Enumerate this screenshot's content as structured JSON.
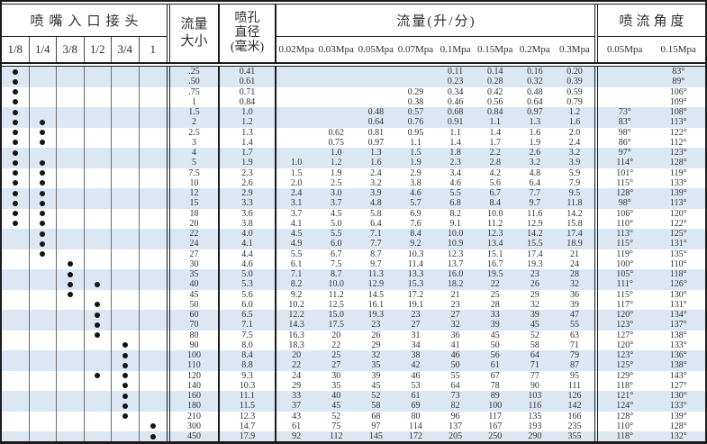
{
  "colors": {
    "stripe": "#dbe7f3",
    "border": "#1b1b1b",
    "text": "#2d2d2d"
  },
  "header": {
    "connector_group": "喷嘴入口接头",
    "connector_sizes": [
      "1/8",
      "1/4",
      "3/8",
      "1/2",
      "3/4",
      "1"
    ],
    "flow_size_line1": "流量",
    "flow_size_line2": "大小",
    "orifice_line1": "喷孔",
    "orifice_line2": "直径",
    "orifice_line3": "(毫米)",
    "flow_group": "流量(升/分)",
    "flow_pressures": [
      "0.02Mpa",
      "0.03Mpa",
      "0.05Mpa",
      "0.07Mpa",
      "0.1Mpa",
      "0.15Mpa",
      "0.2Mpa",
      "0.3Mpa"
    ],
    "angle_group": "喷流角度",
    "angle_pressures": [
      "0.05Mpa",
      "0.15Mpa"
    ]
  },
  "rows": [
    {
      "dots": [
        1,
        0,
        0,
        0,
        0,
        0
      ],
      "size": ".25",
      "dia": "0.41",
      "flows": [
        "",
        "",
        "",
        "",
        "0.11",
        "0.14",
        "0.16",
        "0.20"
      ],
      "angles": [
        "",
        "83°"
      ]
    },
    {
      "dots": [
        1,
        0,
        0,
        0,
        0,
        0
      ],
      "size": ".50",
      "dia": "0.61",
      "flows": [
        "",
        "",
        "",
        "",
        "0.23",
        "0.28",
        "0.32",
        "0.39"
      ],
      "angles": [
        "",
        "89°"
      ]
    },
    {
      "dots": [
        1,
        0,
        0,
        0,
        0,
        0
      ],
      "size": ".75",
      "dia": "0.71",
      "flows": [
        "",
        "",
        "",
        "0.29",
        "0.34",
        "0.42",
        "0.48",
        "0.59"
      ],
      "angles": [
        "",
        "106°"
      ]
    },
    {
      "dots": [
        1,
        0,
        0,
        0,
        0,
        0
      ],
      "size": "1",
      "dia": "0.84",
      "flows": [
        "",
        "",
        "",
        "0.38",
        "0.46",
        "0.56",
        "0.64",
        "0.79"
      ],
      "angles": [
        "",
        "109°"
      ]
    },
    {
      "dots": [
        1,
        0,
        0,
        0,
        0,
        0
      ],
      "size": "1.5",
      "dia": "1.0",
      "flows": [
        "",
        "",
        "0.48",
        "0.57",
        "0.68",
        "0.84",
        "0.97",
        "1.2"
      ],
      "angles": [
        "73°",
        "108°"
      ]
    },
    {
      "dots": [
        1,
        1,
        0,
        0,
        0,
        0
      ],
      "size": "2",
      "dia": "1.2",
      "flows": [
        "",
        "",
        "0.64",
        "0.76",
        "0.91",
        "1.1",
        "1.3",
        "1.6"
      ],
      "angles": [
        "83°",
        "113°"
      ]
    },
    {
      "dots": [
        1,
        1,
        0,
        0,
        0,
        0
      ],
      "size": "2.5",
      "dia": "1.3",
      "flows": [
        "",
        "0.62",
        "0.81",
        "0.95",
        "1.1",
        "1.4",
        "1.6",
        "2.0"
      ],
      "angles": [
        "98°",
        "122°"
      ]
    },
    {
      "dots": [
        1,
        1,
        0,
        0,
        0,
        0
      ],
      "size": "3",
      "dia": "1.4",
      "flows": [
        "",
        "0.75",
        "0.97",
        "1.1",
        "1.4",
        "1.7",
        "1.9",
        "2.4"
      ],
      "angles": [
        "86°",
        "112°"
      ]
    },
    {
      "dots": [
        1,
        0,
        0,
        0,
        0,
        0
      ],
      "size": "4",
      "dia": "1.7",
      "flows": [
        "",
        "1.0",
        "1.3",
        "1.5",
        "1.8",
        "2.2",
        "2.6",
        "3.2"
      ],
      "angles": [
        "97°",
        "123°"
      ]
    },
    {
      "dots": [
        1,
        1,
        0,
        0,
        0,
        0
      ],
      "size": "5",
      "dia": "1.9",
      "flows": [
        "1.0",
        "1.2",
        "1.6",
        "1.9",
        "2.3",
        "2.8",
        "3.2",
        "3.9"
      ],
      "angles": [
        "114°",
        "128°"
      ]
    },
    {
      "dots": [
        1,
        1,
        0,
        0,
        0,
        0
      ],
      "size": "7.5",
      "dia": "2.3",
      "flows": [
        "1.5",
        "1.9",
        "2.4",
        "2.9",
        "3.4",
        "4.2",
        "4.8",
        "5.9"
      ],
      "angles": [
        "101°",
        "119°"
      ]
    },
    {
      "dots": [
        1,
        1,
        0,
        0,
        0,
        0
      ],
      "size": "10",
      "dia": "2.6",
      "flows": [
        "2.0",
        "2.5",
        "3.2",
        "3.8",
        "4.6",
        "5.6",
        "6.4",
        "7.9"
      ],
      "angles": [
        "115°",
        "133°"
      ]
    },
    {
      "dots": [
        1,
        1,
        0,
        0,
        0,
        0
      ],
      "size": "12",
      "dia": "2.9",
      "flows": [
        "2.4",
        "3.0",
        "3.9",
        "4.6",
        "5.5",
        "6.7",
        "7.7",
        "9.5"
      ],
      "angles": [
        "128°",
        "139°"
      ]
    },
    {
      "dots": [
        1,
        1,
        0,
        0,
        0,
        0
      ],
      "size": "15",
      "dia": "3.3",
      "flows": [
        "3.1",
        "3.7",
        "4.8",
        "5.7",
        "6.8",
        "8.4",
        "9.7",
        "11.8"
      ],
      "angles": [
        "98°",
        "113°"
      ]
    },
    {
      "dots": [
        1,
        1,
        0,
        0,
        0,
        0
      ],
      "size": "18",
      "dia": "3.6",
      "flows": [
        "3.7",
        "4.5",
        "5.8",
        "6.9",
        "8.2",
        "10.0",
        "11.6",
        "14.2"
      ],
      "angles": [
        "106°",
        "120°"
      ]
    },
    {
      "dots": [
        1,
        1,
        0,
        0,
        0,
        0
      ],
      "size": "20",
      "dia": "3.8",
      "flows": [
        "4.1",
        "5.0",
        "6.4",
        "7.6",
        "9.1",
        "11.2",
        "12.9",
        "15.8"
      ],
      "angles": [
        "110°",
        "122°"
      ]
    },
    {
      "dots": [
        0,
        1,
        0,
        0,
        0,
        0
      ],
      "size": "22",
      "dia": "4.0",
      "flows": [
        "4.5",
        "5.5",
        "7.1",
        "8.4",
        "10.0",
        "12.3",
        "14.2",
        "17.4"
      ],
      "angles": [
        "113°",
        "125°"
      ]
    },
    {
      "dots": [
        0,
        1,
        0,
        0,
        0,
        0
      ],
      "size": "24",
      "dia": "4.1",
      "flows": [
        "4.9",
        "6.0",
        "7.7",
        "9.2",
        "10.9",
        "13.4",
        "15.5",
        "18.9"
      ],
      "angles": [
        "115°",
        "131°"
      ]
    },
    {
      "dots": [
        0,
        1,
        0,
        0,
        0,
        0
      ],
      "size": "27",
      "dia": "4.4",
      "flows": [
        "5.5",
        "6.7",
        "8.7",
        "10.3",
        "12.3",
        "15.1",
        "17.4",
        "21"
      ],
      "angles": [
        "119°",
        "135°"
      ]
    },
    {
      "dots": [
        0,
        0,
        1,
        0,
        0,
        0
      ],
      "size": "30",
      "dia": "4.6",
      "flows": [
        "6.1",
        "7.5",
        "9.7",
        "11.4",
        "13.7",
        "16.7",
        "19.3",
        "24"
      ],
      "angles": [
        "100°",
        "110°"
      ]
    },
    {
      "dots": [
        0,
        0,
        1,
        0,
        0,
        0
      ],
      "size": "35",
      "dia": "5.0",
      "flows": [
        "7.1",
        "8.7",
        "11.3",
        "13.3",
        "16.0",
        "19.5",
        "23",
        "28"
      ],
      "angles": [
        "105°",
        "118°"
      ]
    },
    {
      "dots": [
        0,
        0,
        1,
        1,
        0,
        0
      ],
      "size": "40",
      "dia": "5.3",
      "flows": [
        "8.2",
        "10.0",
        "12.9",
        "15.3",
        "18.2",
        "22",
        "26",
        "32"
      ],
      "angles": [
        "111°",
        "126°"
      ]
    },
    {
      "dots": [
        0,
        0,
        1,
        0,
        0,
        0
      ],
      "size": "45",
      "dia": "5.6",
      "flows": [
        "9.2",
        "11.2",
        "14.5",
        "17.2",
        "21",
        "25",
        "29",
        "36"
      ],
      "angles": [
        "115°",
        "130°"
      ]
    },
    {
      "dots": [
        0,
        0,
        0,
        1,
        0,
        0
      ],
      "size": "50",
      "dia": "6.0",
      "flows": [
        "10.2",
        "12.5",
        "16.1",
        "19.1",
        "23",
        "28",
        "32",
        "39"
      ],
      "angles": [
        "117°",
        "131°"
      ]
    },
    {
      "dots": [
        0,
        0,
        0,
        1,
        0,
        0
      ],
      "size": "60",
      "dia": "6.5",
      "flows": [
        "12.2",
        "15.0",
        "19.3",
        "23",
        "27",
        "33",
        "39",
        "47"
      ],
      "angles": [
        "120°",
        "134°"
      ]
    },
    {
      "dots": [
        0,
        0,
        0,
        1,
        0,
        0
      ],
      "size": "70",
      "dia": "7.1",
      "flows": [
        "14.3",
        "17.5",
        "23",
        "27",
        "32",
        "39",
        "45",
        "55"
      ],
      "angles": [
        "123°",
        "137°"
      ]
    },
    {
      "dots": [
        0,
        0,
        0,
        1,
        0,
        0
      ],
      "size": "80",
      "dia": "7.5",
      "flows": [
        "16.3",
        "20",
        "26",
        "31",
        "36",
        "45",
        "52",
        "63"
      ],
      "angles": [
        "127°",
        "138°"
      ]
    },
    {
      "dots": [
        0,
        0,
        0,
        0,
        1,
        0
      ],
      "size": "90",
      "dia": "8.0",
      "flows": [
        "18.3",
        "22",
        "29",
        "34",
        "41",
        "50",
        "58",
        "71"
      ],
      "angles": [
        "120°",
        "133°"
      ]
    },
    {
      "dots": [
        0,
        0,
        0,
        0,
        1,
        0
      ],
      "size": "100",
      "dia": "8.4",
      "flows": [
        "20",
        "25",
        "32",
        "38",
        "46",
        "56",
        "64",
        "79"
      ],
      "angles": [
        "123°",
        "136°"
      ]
    },
    {
      "dots": [
        0,
        0,
        0,
        0,
        1,
        0
      ],
      "size": "110",
      "dia": "8.8",
      "flows": [
        "22",
        "27",
        "35",
        "42",
        "50",
        "61",
        "71",
        "87"
      ],
      "angles": [
        "125°",
        "138°"
      ]
    },
    {
      "dots": [
        0,
        0,
        0,
        1,
        1,
        0
      ],
      "size": "120",
      "dia": "9.3",
      "flows": [
        "24",
        "30",
        "39",
        "46",
        "55",
        "67",
        "77",
        "95"
      ],
      "angles": [
        "129°",
        "143°"
      ]
    },
    {
      "dots": [
        0,
        0,
        0,
        0,
        1,
        0
      ],
      "size": "140",
      "dia": "10.3",
      "flows": [
        "29",
        "35",
        "45",
        "53",
        "64",
        "78",
        "90",
        "111"
      ],
      "angles": [
        "118°",
        "127°"
      ]
    },
    {
      "dots": [
        0,
        0,
        0,
        0,
        1,
        0
      ],
      "size": "160",
      "dia": "11.1",
      "flows": [
        "33",
        "40",
        "52",
        "61",
        "73",
        "89",
        "103",
        "126"
      ],
      "angles": [
        "121°",
        "130°"
      ]
    },
    {
      "dots": [
        0,
        0,
        0,
        0,
        1,
        0
      ],
      "size": "180",
      "dia": "11.5",
      "flows": [
        "37",
        "45",
        "58",
        "69",
        "82",
        "100",
        "116",
        "142"
      ],
      "angles": [
        "124°",
        "133°"
      ]
    },
    {
      "dots": [
        0,
        0,
        0,
        0,
        1,
        0
      ],
      "size": "210",
      "dia": "12.3",
      "flows": [
        "43",
        "52",
        "68",
        "80",
        "96",
        "117",
        "135",
        "166"
      ],
      "angles": [
        "128°",
        "139°"
      ]
    },
    {
      "dots": [
        0,
        0,
        0,
        0,
        0,
        1
      ],
      "size": "300",
      "dia": "14.7",
      "flows": [
        "61",
        "75",
        "97",
        "114",
        "137",
        "167",
        "193",
        "235"
      ],
      "angles": [
        "110°",
        "128°"
      ]
    },
    {
      "dots": [
        0,
        0,
        0,
        0,
        0,
        1
      ],
      "size": "450",
      "dia": "17.9",
      "flows": [
        "92",
        "112",
        "145",
        "172",
        "205",
        "250",
        "290",
        "355"
      ],
      "angles": [
        "118°",
        "132°"
      ]
    }
  ]
}
